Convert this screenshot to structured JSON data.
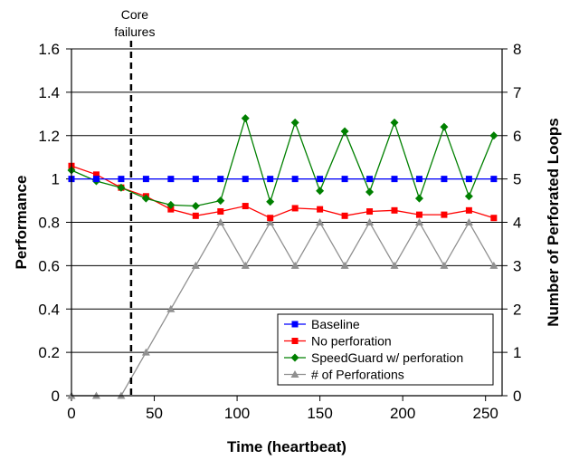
{
  "chart_data": {
    "type": "line",
    "xlabel": "Time (heartbeat)",
    "ylabel": "Performance",
    "ylabel_right": "Number of Perforated Loops",
    "xlim": [
      0,
      260
    ],
    "ylim": [
      0,
      1.6
    ],
    "ylim_right": [
      0,
      8
    ],
    "x_ticks": [
      "0",
      "50",
      "100",
      "150",
      "200",
      "250"
    ],
    "x_tick_values": [
      0,
      50,
      100,
      150,
      200,
      250
    ],
    "y_ticks": [
      "0",
      "0.2",
      "0.4",
      "0.6",
      "0.8",
      "1",
      "1.2",
      "1.4",
      "1.6"
    ],
    "y_tick_values": [
      0,
      0.2,
      0.4,
      0.6,
      0.8,
      1.0,
      1.2,
      1.4,
      1.6
    ],
    "y_ticks_right": [
      "0",
      "1",
      "2",
      "3",
      "4",
      "5",
      "6",
      "7",
      "8"
    ],
    "y_tick_values_right": [
      0,
      1,
      2,
      3,
      4,
      5,
      6,
      7,
      8
    ],
    "grid": "horizontal",
    "legend_position": "bottom-right",
    "annotation": {
      "lines": [
        "Core",
        "failures"
      ],
      "x": 36
    },
    "series": [
      {
        "name": "Baseline",
        "axis": "left",
        "color": "#0000ff",
        "marker": "square",
        "x": [
          0,
          15,
          30,
          45,
          60,
          75,
          90,
          105,
          120,
          135,
          150,
          165,
          180,
          195,
          210,
          225,
          240,
          255
        ],
        "values": [
          1,
          1,
          1,
          1,
          1,
          1,
          1,
          1,
          1,
          1,
          1,
          1,
          1,
          1,
          1,
          1,
          1,
          1
        ]
      },
      {
        "name": "No perforation",
        "axis": "left",
        "color": "#ff0000",
        "marker": "square",
        "x": [
          0,
          15,
          30,
          45,
          60,
          75,
          90,
          105,
          120,
          135,
          150,
          165,
          180,
          195,
          210,
          225,
          240,
          255
        ],
        "values": [
          1.06,
          1.02,
          0.96,
          0.92,
          0.86,
          0.83,
          0.85,
          0.875,
          0.82,
          0.865,
          0.86,
          0.83,
          0.85,
          0.855,
          0.835,
          0.835,
          0.855,
          0.82
        ]
      },
      {
        "name": "SpeedGuard w/ perforation",
        "axis": "left",
        "color": "#008000",
        "marker": "diamond",
        "x": [
          0,
          15,
          30,
          45,
          60,
          75,
          90,
          105,
          120,
          135,
          150,
          165,
          180,
          195,
          210,
          225,
          240,
          255
        ],
        "values": [
          1.04,
          0.99,
          0.96,
          0.91,
          0.88,
          0.875,
          0.9,
          1.28,
          0.895,
          1.26,
          0.945,
          1.22,
          0.94,
          1.26,
          0.91,
          1.24,
          0.92,
          1.2
        ]
      },
      {
        "name": "# of Perforations",
        "axis": "right",
        "color": "#909090",
        "marker": "triangle",
        "x": [
          0,
          15,
          30,
          45,
          60,
          75,
          90,
          105,
          120,
          135,
          150,
          165,
          180,
          195,
          210,
          225,
          240,
          255
        ],
        "values": [
          0,
          0,
          0,
          1,
          2,
          3,
          4,
          3,
          4,
          3,
          4,
          3,
          4,
          3,
          4,
          3,
          4,
          3
        ]
      }
    ]
  }
}
